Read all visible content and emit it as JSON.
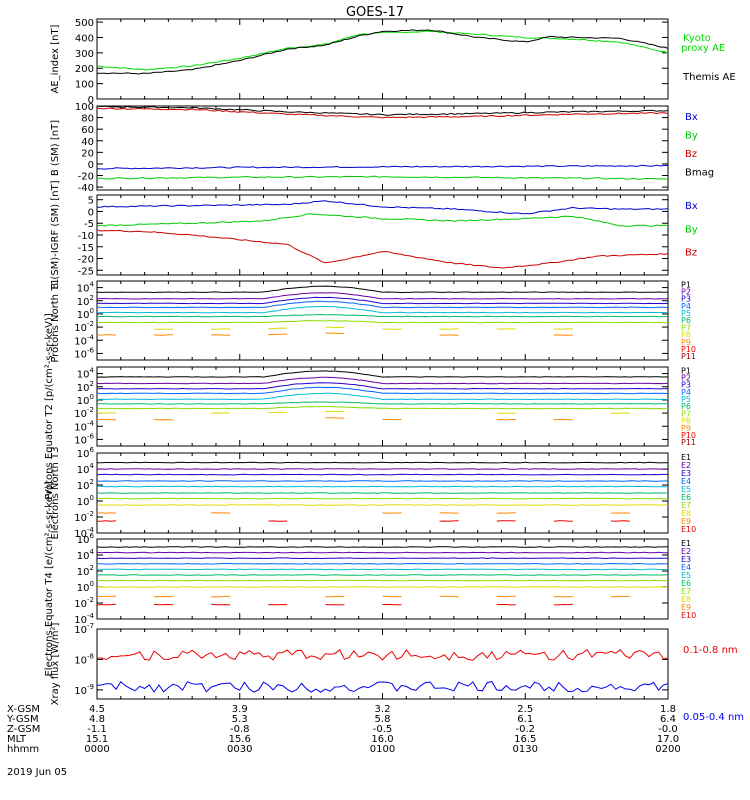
{
  "title": "GOES-17",
  "date_label": "2019 Jun 05",
  "x_axis": {
    "row_labels": [
      "X-GSM",
      "Y-GSM",
      "Z-GSM",
      "MLT",
      "hhmm"
    ],
    "columns": [
      {
        "values": [
          "4.5",
          "4.8",
          "-1.1",
          "15.1",
          "0000"
        ]
      },
      {
        "values": [
          "3.9",
          "5.3",
          "-0.8",
          "15.6",
          "0030"
        ]
      },
      {
        "values": [
          "3.2",
          "5.8",
          "-0.5",
          "16.0",
          "0100"
        ]
      },
      {
        "values": [
          "2.5",
          "6.1",
          "-0.2",
          "16.5",
          "0130"
        ]
      },
      {
        "values": [
          "1.8",
          "6.4",
          "-0.0",
          "17.0",
          "0200"
        ]
      }
    ],
    "range_minutes": [
      0,
      120
    ]
  },
  "chart_data": [
    {
      "type": "line",
      "ylabel": "AE_index [nT]",
      "yticks": [
        "0",
        "100",
        "200",
        "300",
        "400",
        "500"
      ],
      "ylim": [
        0,
        520
      ],
      "legend": [
        {
          "name": "Kyoto proxy AE",
          "color": "#00dd00"
        },
        {
          "name": "Themis AE",
          "color": "#000000"
        }
      ],
      "series": [
        {
          "name": "Kyoto proxy AE",
          "color": "#00dd00",
          "x": [
            0,
            10,
            20,
            30,
            40,
            48,
            55,
            60,
            70,
            80,
            90,
            95,
            100,
            110,
            120
          ],
          "y": [
            215,
            190,
            215,
            265,
            330,
            355,
            420,
            430,
            440,
            420,
            400,
            395,
            390,
            370,
            300
          ]
        },
        {
          "name": "Themis AE",
          "color": "#000000",
          "x": [
            0,
            10,
            20,
            30,
            40,
            48,
            55,
            60,
            70,
            80,
            90,
            95,
            100,
            110,
            120
          ],
          "y": [
            170,
            165,
            190,
            250,
            325,
            350,
            410,
            440,
            450,
            400,
            370,
            405,
            400,
            395,
            330
          ]
        }
      ]
    },
    {
      "type": "line",
      "ylabel": "B (SM) [nT]",
      "yticks": [
        "-40",
        "-20",
        "0",
        "20",
        "40",
        "60",
        "80",
        "100"
      ],
      "ylim": [
        -45,
        100
      ],
      "legend": [
        {
          "name": "Bx",
          "color": "#0000cc"
        },
        {
          "name": "By",
          "color": "#00cc00"
        },
        {
          "name": "Bz",
          "color": "#cc0000"
        },
        {
          "name": "Bmag",
          "color": "#000000"
        }
      ],
      "series": [
        {
          "name": "Bx",
          "color": "#0000cc",
          "x": [
            0,
            30,
            60,
            90,
            120
          ],
          "y": [
            -8,
            -6,
            -5,
            -4,
            -3
          ]
        },
        {
          "name": "By",
          "color": "#00cc00",
          "x": [
            0,
            30,
            60,
            90,
            120
          ],
          "y": [
            -25,
            -23,
            -22,
            -24,
            -26
          ]
        },
        {
          "name": "Bz",
          "color": "#cc0000",
          "x": [
            0,
            20,
            40,
            60,
            80,
            100,
            120
          ],
          "y": [
            96,
            94,
            86,
            80,
            82,
            86,
            88
          ]
        },
        {
          "name": "Bmag",
          "color": "#000000",
          "x": [
            0,
            20,
            40,
            60,
            80,
            100,
            120
          ],
          "y": [
            99,
            97,
            90,
            85,
            87,
            90,
            92
          ]
        }
      ]
    },
    {
      "type": "line",
      "ylabel": "B (SM)-IGRF (SM) [nT]",
      "yticks": [
        "-25",
        "-20",
        "-15",
        "-10",
        "-5",
        "0",
        "5"
      ],
      "ylim": [
        -27,
        7
      ],
      "legend": [
        {
          "name": "Bx",
          "color": "#0000cc"
        },
        {
          "name": "By",
          "color": "#00cc00"
        },
        {
          "name": "Bz",
          "color": "#cc0000"
        }
      ],
      "series": [
        {
          "name": "Bx",
          "color": "#0000cc",
          "x": [
            0,
            20,
            40,
            48,
            60,
            75,
            90,
            100,
            110,
            120
          ],
          "y": [
            2,
            2.5,
            3,
            4.5,
            2,
            1,
            -1,
            1.5,
            1,
            1
          ]
        },
        {
          "name": "By",
          "color": "#00cc00",
          "x": [
            0,
            20,
            35,
            45,
            60,
            75,
            90,
            100,
            110,
            120
          ],
          "y": [
            -6,
            -5,
            -4,
            -1,
            -3,
            -4,
            -3,
            -2,
            -6,
            -6
          ]
        },
        {
          "name": "Bz",
          "color": "#cc0000",
          "x": [
            0,
            10,
            20,
            30,
            40,
            48,
            60,
            75,
            85,
            95,
            105,
            120
          ],
          "y": [
            -8,
            -8.5,
            -10,
            -12,
            -14,
            -22,
            -17,
            -22,
            -24,
            -22,
            -19,
            -18
          ]
        }
      ]
    },
    {
      "type": "line",
      "log_scale": true,
      "ylabel": "Protons North T1",
      "ytick_exponents": [
        4,
        2,
        0,
        -2,
        -4,
        -6
      ],
      "ylim_exp": [
        -7,
        5
      ],
      "channels": [
        "P1",
        "P2",
        "P3",
        "P4",
        "P5",
        "P6",
        "P7",
        "P8",
        "P9",
        "P10",
        "P11"
      ],
      "channel_colors": [
        "#000000",
        "#6600aa",
        "#2200cc",
        "#0066ff",
        "#00bbdd",
        "#00bb66",
        "#88dd00",
        "#dddd00",
        "#ff8800",
        "#ee0000",
        "#aa0000"
      ],
      "series_levels_exp": [
        3.3,
        2.3,
        1.6,
        1.0,
        0.2,
        -0.4,
        -1.3,
        -2.3,
        -3.2
      ]
    },
    {
      "type": "line",
      "log_scale": true,
      "ylabel": "Protons Equator T2 [p/(cm²-s-sr-keV)]",
      "ytick_exponents": [
        4,
        2,
        0,
        -2,
        -4,
        -6
      ],
      "ylim_exp": [
        -7,
        5
      ],
      "channels": [
        "P1",
        "P2",
        "P3",
        "P4",
        "P5",
        "P6",
        "P7",
        "P8",
        "P9",
        "P10",
        "P11"
      ],
      "channel_colors": [
        "#000000",
        "#6600aa",
        "#2200cc",
        "#0066ff",
        "#00bbdd",
        "#00bb66",
        "#88dd00",
        "#dddd00",
        "#ff8800",
        "#ee0000",
        "#aa0000"
      ],
      "series_levels_exp": [
        3.5,
        2.5,
        1.7,
        1.0,
        0.1,
        -0.6,
        -1.3,
        -2.0,
        -3.0
      ]
    },
    {
      "type": "line",
      "log_scale": true,
      "ylabel": "Electrons North T3",
      "ytick_exponents": [
        6,
        4,
        2,
        0,
        -2,
        -4
      ],
      "ylim_exp": [
        -4,
        6
      ],
      "channels": [
        "E1",
        "E2",
        "E3",
        "E4",
        "E5",
        "E6",
        "E7",
        "E8",
        "E9",
        "E10"
      ],
      "channel_colors": [
        "#000000",
        "#6600aa",
        "#2200cc",
        "#0066ff",
        "#00bbdd",
        "#00bb66",
        "#88dd00",
        "#dddd00",
        "#ff8800",
        "#ee0000"
      ],
      "series_levels_exp": [
        4.8,
        4.0,
        3.3,
        2.5,
        1.8,
        1.0,
        0.3,
        -0.5,
        -1.5,
        -2.5
      ]
    },
    {
      "type": "line",
      "log_scale": true,
      "ylabel": "Electrons Equator T4 [e/(cm²-s-sr-keV)]",
      "ytick_exponents": [
        6,
        4,
        2,
        0,
        -2,
        -4
      ],
      "ylim_exp": [
        -4,
        6
      ],
      "channels": [
        "E1",
        "E2",
        "E3",
        "E4",
        "E5",
        "E6",
        "E7",
        "E8",
        "E9",
        "E10"
      ],
      "channel_colors": [
        "#000000",
        "#6600aa",
        "#2200cc",
        "#0066ff",
        "#00bbdd",
        "#00bb66",
        "#88dd00",
        "#dddd00",
        "#ff8800",
        "#ee0000"
      ],
      "series_levels_exp": [
        5.0,
        4.3,
        3.6,
        2.9,
        2.2,
        1.5,
        0.8,
        0.0,
        -1.2,
        -2.2
      ]
    },
    {
      "type": "line",
      "log_scale": true,
      "ylabel": "Xray flux [W/m²]",
      "ytick_exponents": [
        -7,
        -8,
        -9
      ],
      "ylim_exp": [
        -9.3,
        -7
      ],
      "legend": [
        {
          "name": "0.1-0.8 nm",
          "color": "#ee0000"
        },
        {
          "name": "0.05-0.4 nm",
          "color": "#0000ee"
        }
      ],
      "series_levels_exp": [
        -7.85,
        -8.9
      ]
    }
  ]
}
